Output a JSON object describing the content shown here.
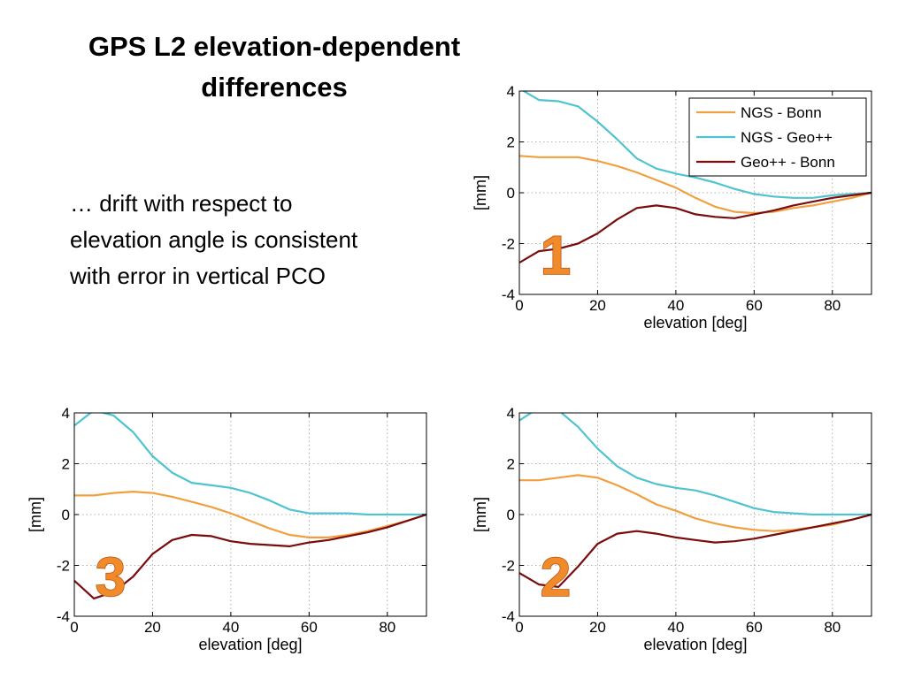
{
  "slide": {
    "title_lines": [
      "GPS L2 elevation-dependent",
      "differences"
    ],
    "body_lines": [
      "… drift with respect to",
      "elevation angle is consistent",
      "with error in vertical PCO"
    ]
  },
  "colors": {
    "ngs_bonn": "#f0a040",
    "ngs_geo": "#4fc3cf",
    "geo_bonn": "#7a0c0c",
    "badge": "#f08a2a"
  },
  "chart_data": [
    {
      "type": "line",
      "badge": "1",
      "xlabel": "elevation [deg]",
      "ylabel": "[mm]",
      "xlim": [
        0,
        90
      ],
      "ylim": [
        -4,
        4
      ],
      "xticks": [
        0,
        20,
        40,
        60,
        80
      ],
      "yticks": [
        4,
        2,
        0,
        -2,
        -4
      ],
      "grid": true,
      "legend": {
        "placement": "top-right",
        "entries": [
          "NGS - Bonn",
          "NGS - Geo++",
          "Geo++ - Bonn"
        ]
      },
      "x": [
        0,
        5,
        10,
        15,
        20,
        25,
        30,
        35,
        40,
        45,
        50,
        55,
        60,
        65,
        70,
        75,
        80,
        85,
        90
      ],
      "series": [
        {
          "name": "NGS - Bonn",
          "color": "#f0a040",
          "values": [
            1.45,
            1.4,
            1.4,
            1.4,
            1.25,
            1.05,
            0.8,
            0.5,
            0.2,
            -0.2,
            -0.55,
            -0.75,
            -0.8,
            -0.75,
            -0.6,
            -0.5,
            -0.35,
            -0.2,
            0.0
          ]
        },
        {
          "name": "NGS - Geo++",
          "color": "#4fc3cf",
          "values": [
            4.1,
            3.65,
            3.6,
            3.4,
            2.8,
            2.1,
            1.35,
            0.95,
            0.75,
            0.6,
            0.4,
            0.15,
            -0.05,
            -0.15,
            -0.2,
            -0.2,
            -0.1,
            -0.05,
            0.0
          ]
        },
        {
          "name": "Geo++ - Bonn",
          "color": "#7a0c0c",
          "values": [
            -2.75,
            -2.3,
            -2.2,
            -2.0,
            -1.6,
            -1.05,
            -0.6,
            -0.5,
            -0.6,
            -0.85,
            -0.95,
            -1.0,
            -0.85,
            -0.7,
            -0.5,
            -0.35,
            -0.2,
            -0.1,
            0.0
          ]
        }
      ]
    },
    {
      "type": "line",
      "badge": "3",
      "xlabel": "elevation [deg]",
      "ylabel": "[mm]",
      "xlim": [
        0,
        90
      ],
      "ylim": [
        -4,
        4
      ],
      "xticks": [
        0,
        20,
        40,
        60,
        80
      ],
      "yticks": [
        4,
        2,
        0,
        -2,
        -4
      ],
      "grid": true,
      "x": [
        0,
        5,
        10,
        15,
        20,
        25,
        30,
        35,
        40,
        45,
        50,
        55,
        60,
        65,
        70,
        75,
        80,
        85,
        90
      ],
      "series": [
        {
          "name": "NGS - Bonn",
          "color": "#f0a040",
          "values": [
            0.75,
            0.75,
            0.85,
            0.9,
            0.85,
            0.7,
            0.5,
            0.3,
            0.05,
            -0.25,
            -0.55,
            -0.8,
            -0.9,
            -0.9,
            -0.8,
            -0.65,
            -0.45,
            -0.25,
            0.0
          ]
        },
        {
          "name": "NGS - Geo++",
          "color": "#4fc3cf",
          "values": [
            3.5,
            4.1,
            3.9,
            3.25,
            2.3,
            1.65,
            1.25,
            1.15,
            1.05,
            0.85,
            0.55,
            0.2,
            0.05,
            0.05,
            0.05,
            0.0,
            0.0,
            0.0,
            0.0
          ]
        },
        {
          "name": "Geo++ - Bonn",
          "color": "#7a0c0c",
          "values": [
            -2.6,
            -3.3,
            -3.05,
            -2.45,
            -1.55,
            -1.0,
            -0.8,
            -0.85,
            -1.05,
            -1.15,
            -1.2,
            -1.25,
            -1.1,
            -1.0,
            -0.85,
            -0.7,
            -0.5,
            -0.25,
            0.0
          ]
        }
      ]
    },
    {
      "type": "line",
      "badge": "2",
      "xlabel": "elevation [deg]",
      "ylabel": "[mm]",
      "xlim": [
        0,
        90
      ],
      "ylim": [
        -4,
        4
      ],
      "xticks": [
        0,
        20,
        40,
        60,
        80
      ],
      "yticks": [
        4,
        2,
        0,
        -2,
        -4
      ],
      "grid": true,
      "x": [
        0,
        5,
        10,
        15,
        20,
        25,
        30,
        35,
        40,
        45,
        50,
        55,
        60,
        65,
        70,
        75,
        80,
        85,
        90
      ],
      "series": [
        {
          "name": "NGS - Bonn",
          "color": "#f0a040",
          "values": [
            1.35,
            1.35,
            1.45,
            1.55,
            1.45,
            1.15,
            0.8,
            0.4,
            0.15,
            -0.15,
            -0.35,
            -0.5,
            -0.6,
            -0.65,
            -0.6,
            -0.5,
            -0.4,
            -0.2,
            0.0
          ]
        },
        {
          "name": "NGS - Geo++",
          "color": "#4fc3cf",
          "values": [
            3.7,
            4.2,
            4.1,
            3.45,
            2.6,
            1.9,
            1.45,
            1.2,
            1.05,
            0.95,
            0.75,
            0.5,
            0.25,
            0.1,
            0.05,
            0.0,
            0.0,
            0.0,
            0.0
          ]
        },
        {
          "name": "Geo++ - Bonn",
          "color": "#7a0c0c",
          "values": [
            -2.3,
            -2.75,
            -2.85,
            -2.05,
            -1.15,
            -0.75,
            -0.65,
            -0.75,
            -0.9,
            -1.0,
            -1.1,
            -1.05,
            -0.95,
            -0.8,
            -0.65,
            -0.5,
            -0.35,
            -0.2,
            0.0
          ]
        }
      ]
    }
  ]
}
